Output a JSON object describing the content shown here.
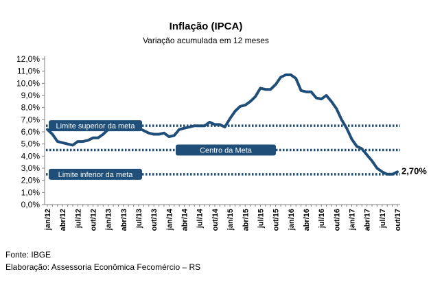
{
  "chart_data": {
    "type": "line",
    "title": "Inflação (IPCA)",
    "subtitle": "Variação acumulada em 12 meses",
    "ylim": [
      0,
      12
    ],
    "y_ticks": [
      "0,0%",
      "1,0%",
      "2,0%",
      "3,0%",
      "4,0%",
      "5,0%",
      "6,0%",
      "7,0%",
      "8,0%",
      "9,0%",
      "10,0%",
      "11,0%",
      "12,0%"
    ],
    "x_tick_labels": [
      "jan/12",
      "abr/12",
      "jul/12",
      "out/12",
      "jan/13",
      "abr/13",
      "jul/13",
      "out/13",
      "jan/14",
      "abr/14",
      "jul/14",
      "out/14",
      "jan/15",
      "abr/15",
      "jul/15",
      "out/15",
      "jan/16",
      "abr/16",
      "jul/16",
      "out/16",
      "jan/17",
      "abr/17",
      "jul/17",
      "out/17"
    ],
    "x": [
      "jan/12",
      "fev/12",
      "mar/12",
      "abr/12",
      "mai/12",
      "jun/12",
      "jul/12",
      "ago/12",
      "set/12",
      "out/12",
      "nov/12",
      "dez/12",
      "jan/13",
      "fev/13",
      "mar/13",
      "abr/13",
      "mai/13",
      "jun/13",
      "jul/13",
      "ago/13",
      "set/13",
      "out/13",
      "nov/13",
      "dez/13",
      "jan/14",
      "fev/14",
      "mar/14",
      "abr/14",
      "mai/14",
      "jun/14",
      "jul/14",
      "ago/14",
      "set/14",
      "out/14",
      "nov/14",
      "dez/14",
      "jan/15",
      "fev/15",
      "mar/15",
      "abr/15",
      "mai/15",
      "jun/15",
      "jul/15",
      "ago/15",
      "set/15",
      "out/15",
      "nov/15",
      "dez/15",
      "jan/16",
      "fev/16",
      "mar/16",
      "abr/16",
      "mai/16",
      "jun/16",
      "jul/16",
      "ago/16",
      "set/16",
      "out/16",
      "nov/16",
      "dez/16",
      "jan/17",
      "fev/17",
      "mar/17",
      "abr/17",
      "mai/17",
      "jun/17",
      "jul/17",
      "ago/17",
      "set/17",
      "out/17"
    ],
    "series": [
      {
        "color": "#1f4e79",
        "values": [
          6.2,
          5.8,
          5.2,
          5.1,
          5.0,
          4.9,
          5.2,
          5.2,
          5.3,
          5.5,
          5.5,
          5.8,
          6.2,
          6.3,
          6.6,
          6.5,
          6.5,
          6.7,
          6.3,
          6.1,
          5.9,
          5.8,
          5.8,
          5.9,
          5.6,
          5.7,
          6.2,
          6.3,
          6.4,
          6.5,
          6.5,
          6.5,
          6.8,
          6.6,
          6.6,
          6.4,
          7.1,
          7.7,
          8.1,
          8.2,
          8.5,
          8.9,
          9.6,
          9.5,
          9.5,
          9.9,
          10.5,
          10.7,
          10.7,
          10.4,
          9.4,
          9.3,
          9.3,
          8.8,
          8.7,
          9.0,
          8.5,
          7.9,
          7.0,
          6.3,
          5.4,
          4.8,
          4.6,
          4.1,
          3.6,
          3.0,
          2.7,
          2.5,
          2.5,
          2.7
        ]
      }
    ],
    "reference_lines": [
      {
        "label": "Limite superior da meta",
        "value": 6.5
      },
      {
        "label": "Centro da Meta",
        "value": 4.5
      },
      {
        "label": "Limite inferior da meta",
        "value": 2.5
      }
    ],
    "last_value_label": "2,70%",
    "line_color": "#1f4e79",
    "reference_color": "#1f4e79",
    "grid": false
  },
  "footer": {
    "source": "Fonte: IBGE",
    "credit": "Elaboração: Assessoria Econômica Fecomércio – RS"
  }
}
